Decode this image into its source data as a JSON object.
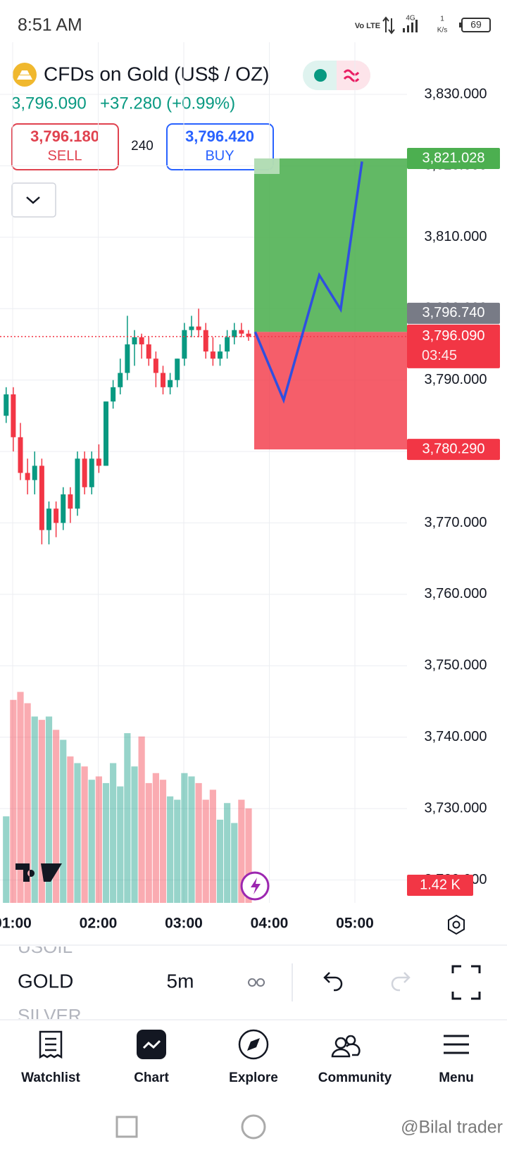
{
  "status_bar": {
    "time": "8:51 AM",
    "network": "Vo LTE",
    "signal": "4G",
    "speed_value": "1",
    "speed_unit": "K/s",
    "battery": "69"
  },
  "header": {
    "title": "CFDs on Gold (US$ / OZ)",
    "price": "3,796.090",
    "change": "+37.280 (+0.99%)",
    "sell_price": "3,796.180",
    "sell_label": "SELL",
    "spread": "240",
    "buy_price": "3,796.420",
    "buy_label": "BUY"
  },
  "chart": {
    "type": "candlestick",
    "ylim": [
      3716.8,
      3837.3
    ],
    "yticks": [
      {
        "value": 3830,
        "label": "3,830.000"
      },
      {
        "value": 3820,
        "label": "3,820.000"
      },
      {
        "value": 3810,
        "label": "3,810.000"
      },
      {
        "value": 3800,
        "label": "3,800.000"
      },
      {
        "value": 3790,
        "label": "3,790.000"
      },
      {
        "value": 3780,
        "label": "3,780.000"
      },
      {
        "value": 3770,
        "label": "3,770.000"
      },
      {
        "value": 3760,
        "label": "3,760.000"
      },
      {
        "value": 3750,
        "label": "3,750.000"
      },
      {
        "value": 3740,
        "label": "3,740.000"
      },
      {
        "value": 3730,
        "label": "3,730.000"
      },
      {
        "value": 3720,
        "label": "3,720.000"
      }
    ],
    "xticks": [
      "01:00",
      "02:00",
      "03:00",
      "04:00",
      "05:00"
    ],
    "grid": true,
    "up_color": "#089981",
    "down_color": "#f23645",
    "candles": {
      "open": [
        3785,
        3788,
        3782,
        3777,
        3776,
        3778,
        3769,
        3772,
        3770,
        3774,
        3772,
        3779,
        3775,
        3779,
        3778,
        3787,
        3789,
        3791,
        3795,
        3796,
        3795,
        3793,
        3791,
        3789,
        3790,
        3793,
        3797,
        3797.5,
        3797,
        3794,
        3793,
        3794,
        3796,
        3797,
        3796.5
      ],
      "high": [
        3789,
        3789,
        3784,
        3779,
        3780,
        3779,
        3773,
        3773,
        3775,
        3775,
        3780,
        3780,
        3780,
        3781,
        3787,
        3790,
        3793,
        3799,
        3797,
        3796.5,
        3796,
        3794,
        3792,
        3791,
        3793,
        3798,
        3799,
        3800,
        3798,
        3796,
        3795,
        3797,
        3798,
        3798,
        3797
      ],
      "low": [
        3784,
        3780,
        3776,
        3774,
        3774,
        3767,
        3767,
        3768,
        3769,
        3770,
        3771,
        3774,
        3774,
        3777,
        3778,
        3786,
        3788,
        3790,
        3792,
        3793,
        3792,
        3789,
        3788,
        3788,
        3789,
        3792,
        3796,
        3796,
        3793,
        3792,
        3792,
        3793,
        3795,
        3796,
        3795.5
      ],
      "close": [
        3788,
        3782,
        3777,
        3776,
        3778,
        3769,
        3772,
        3770,
        3774,
        3772,
        3779,
        3775,
        3779,
        3778,
        3787,
        3789,
        3791,
        3795,
        3796,
        3795,
        3793,
        3791,
        3789,
        3790,
        3793,
        3797,
        3797.5,
        3797,
        3794,
        3793,
        3794,
        3796,
        3797,
        3796.5,
        3796.09
      ]
    },
    "volume": {
      "values": [
        1.3,
        3.05,
        3.17,
        3.0,
        2.8,
        2.75,
        2.8,
        2.6,
        2.45,
        2.2,
        2.1,
        2.05,
        1.85,
        1.9,
        1.8,
        2.1,
        1.75,
        2.55,
        2.05,
        2.5,
        1.8,
        1.95,
        1.85,
        1.6,
        1.55,
        1.95,
        1.9,
        1.8,
        1.55,
        1.7,
        1.25,
        1.5,
        1.2,
        1.55,
        1.42
      ],
      "label": "1.42 K"
    },
    "last_price": {
      "value": 3796.09,
      "label": "3,796.090",
      "countdown": "03:45"
    },
    "position": {
      "target": {
        "value": 3821.028,
        "label": "3,821.028"
      },
      "entry": {
        "value": 3796.74,
        "label": "3,796.740"
      },
      "stop": {
        "value": 3780.29,
        "label": "3,780.290"
      }
    },
    "projection": {
      "color": "#2f4fe0",
      "x": [
        "03:50",
        "04:10",
        "04:35",
        "04:50",
        "05:05"
      ],
      "values": [
        3796.74,
        3787.2,
        3804.7,
        3799.9,
        3820.6
      ]
    }
  },
  "toolbar": {
    "symbols": [
      "USOIL",
      "GOLD",
      "SILVER"
    ],
    "interval": "5m"
  },
  "nav": [
    "Watchlist",
    "Chart",
    "Explore",
    "Community",
    "Menu"
  ],
  "watermark": "@Bilal trader"
}
